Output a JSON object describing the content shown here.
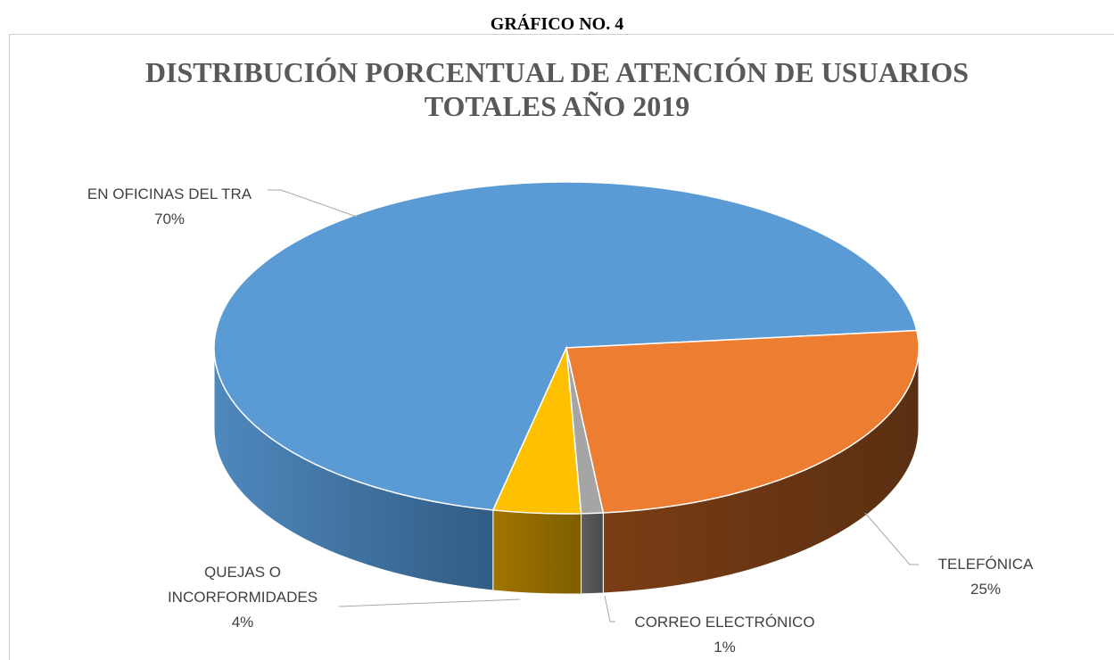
{
  "header": "GRÁFICO NO. 4",
  "chart_data": {
    "type": "pie3d",
    "title": [
      "DISTRIBUCIÓN PORCENTUAL  DE ATENCIÓN DE USUARIOS",
      "TOTALES AÑO 2019"
    ],
    "categories": [
      "EN OFICINAS DEL TRA",
      "TELEFÓNICA",
      "CORREO ELECTRÓNICO",
      "QUEJAS O INCORFORMIDADES"
    ],
    "values": [
      70,
      25,
      1,
      4
    ],
    "value_labels": [
      "70%",
      "25%",
      "1%",
      "4%"
    ],
    "colors": [
      "#5b9bd5",
      "#ed7d31",
      "#a5a5a5",
      "#ffc000"
    ]
  }
}
